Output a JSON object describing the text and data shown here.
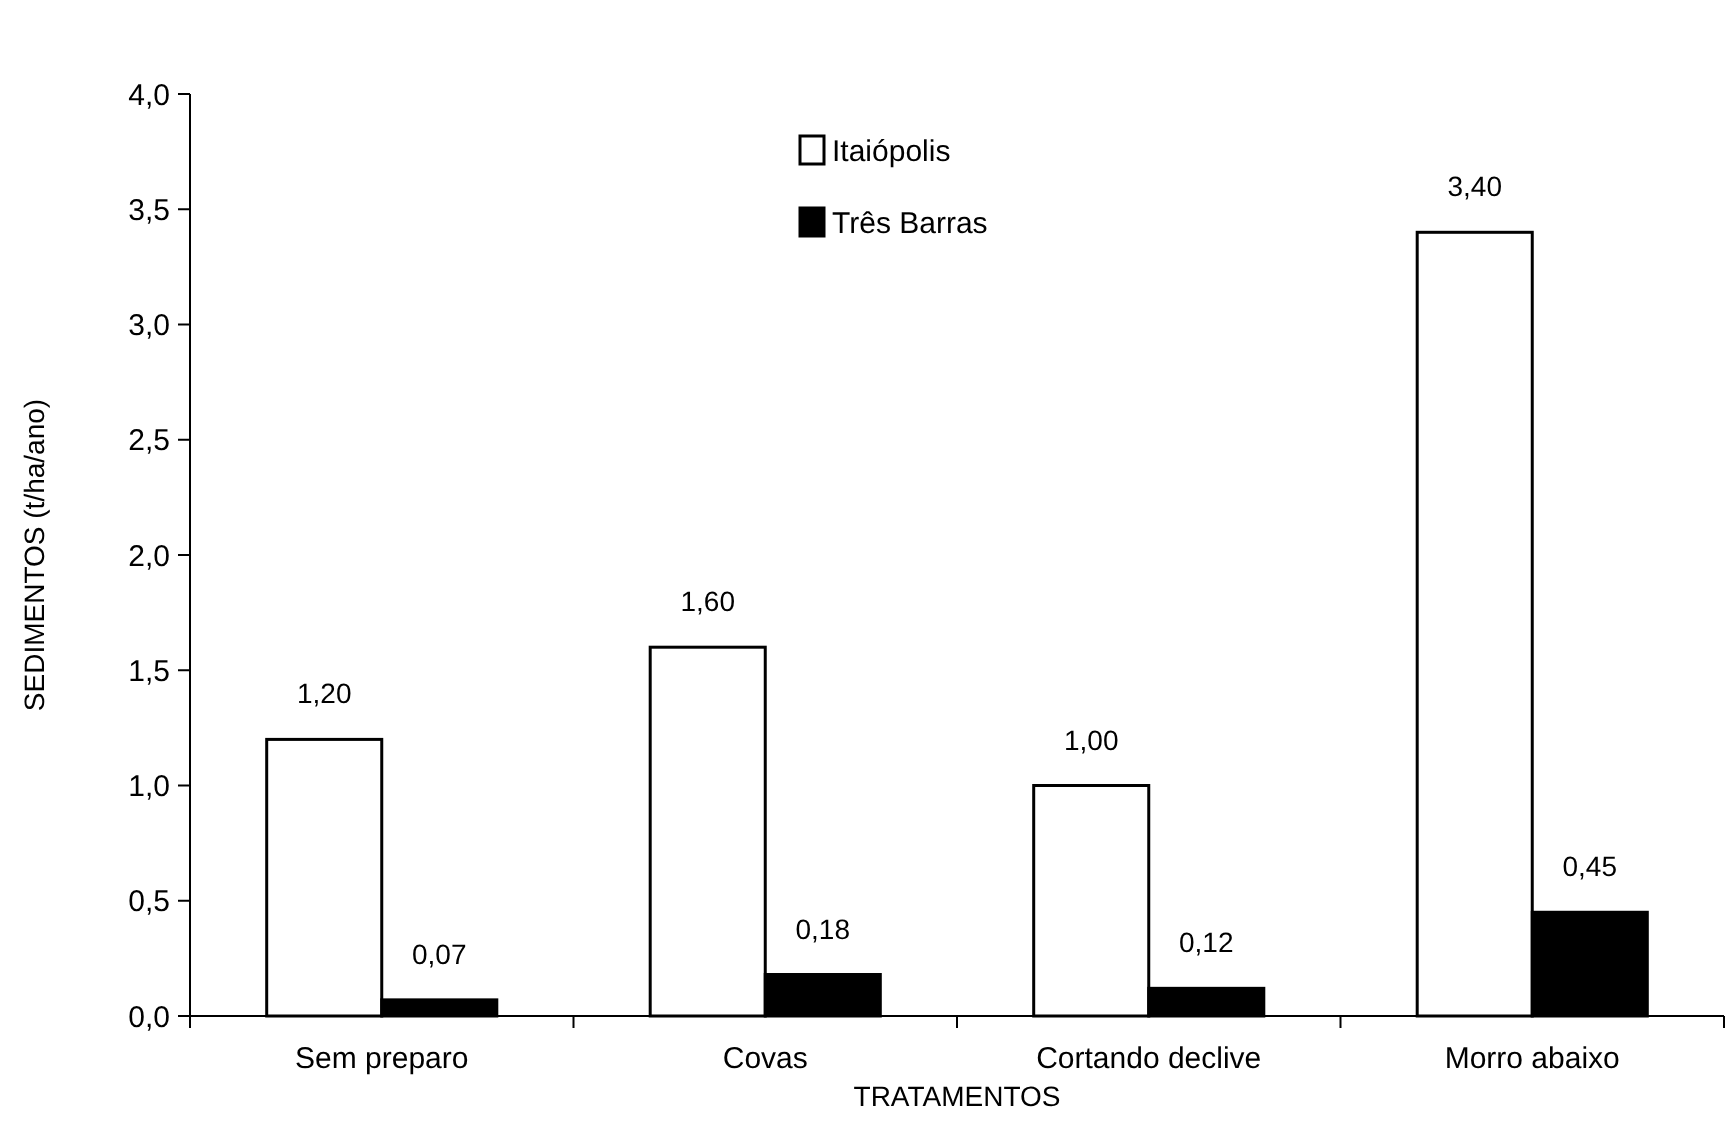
{
  "chart_data": {
    "type": "bar",
    "xlabel": "TRATAMENTOS",
    "ylabel": "SEDIMENTOS (t/ha/ano)",
    "categories": [
      "Sem preparo",
      "Covas",
      "Cortando declive",
      "Morro abaixo"
    ],
    "series": [
      {
        "name": "Itaiópolis",
        "color": "#ffffff",
        "values": [
          1.2,
          1.6,
          1.0,
          3.4
        ],
        "value_labels": [
          "1,20",
          "1,60",
          "1,00",
          "3,40"
        ]
      },
      {
        "name": "Três Barras",
        "color": "#000000",
        "values": [
          0.07,
          0.18,
          0.12,
          0.45
        ],
        "value_labels": [
          "0,07",
          "0,18",
          "0,12",
          "0,45"
        ]
      }
    ],
    "ylim": [
      0,
      4
    ],
    "yticks": [
      {
        "value": 0,
        "label": "0,0"
      },
      {
        "value": 0.5,
        "label": "0,5"
      },
      {
        "value": 1,
        "label": "1,0"
      },
      {
        "value": 1.5,
        "label": "1,5"
      },
      {
        "value": 2,
        "label": "2,0"
      },
      {
        "value": 2.5,
        "label": "2,5"
      },
      {
        "value": 3,
        "label": "3,0"
      },
      {
        "value": 3.5,
        "label": "3,5"
      },
      {
        "value": 4,
        "label": "4,0"
      }
    ],
    "legend": "top",
    "grid": false
  }
}
